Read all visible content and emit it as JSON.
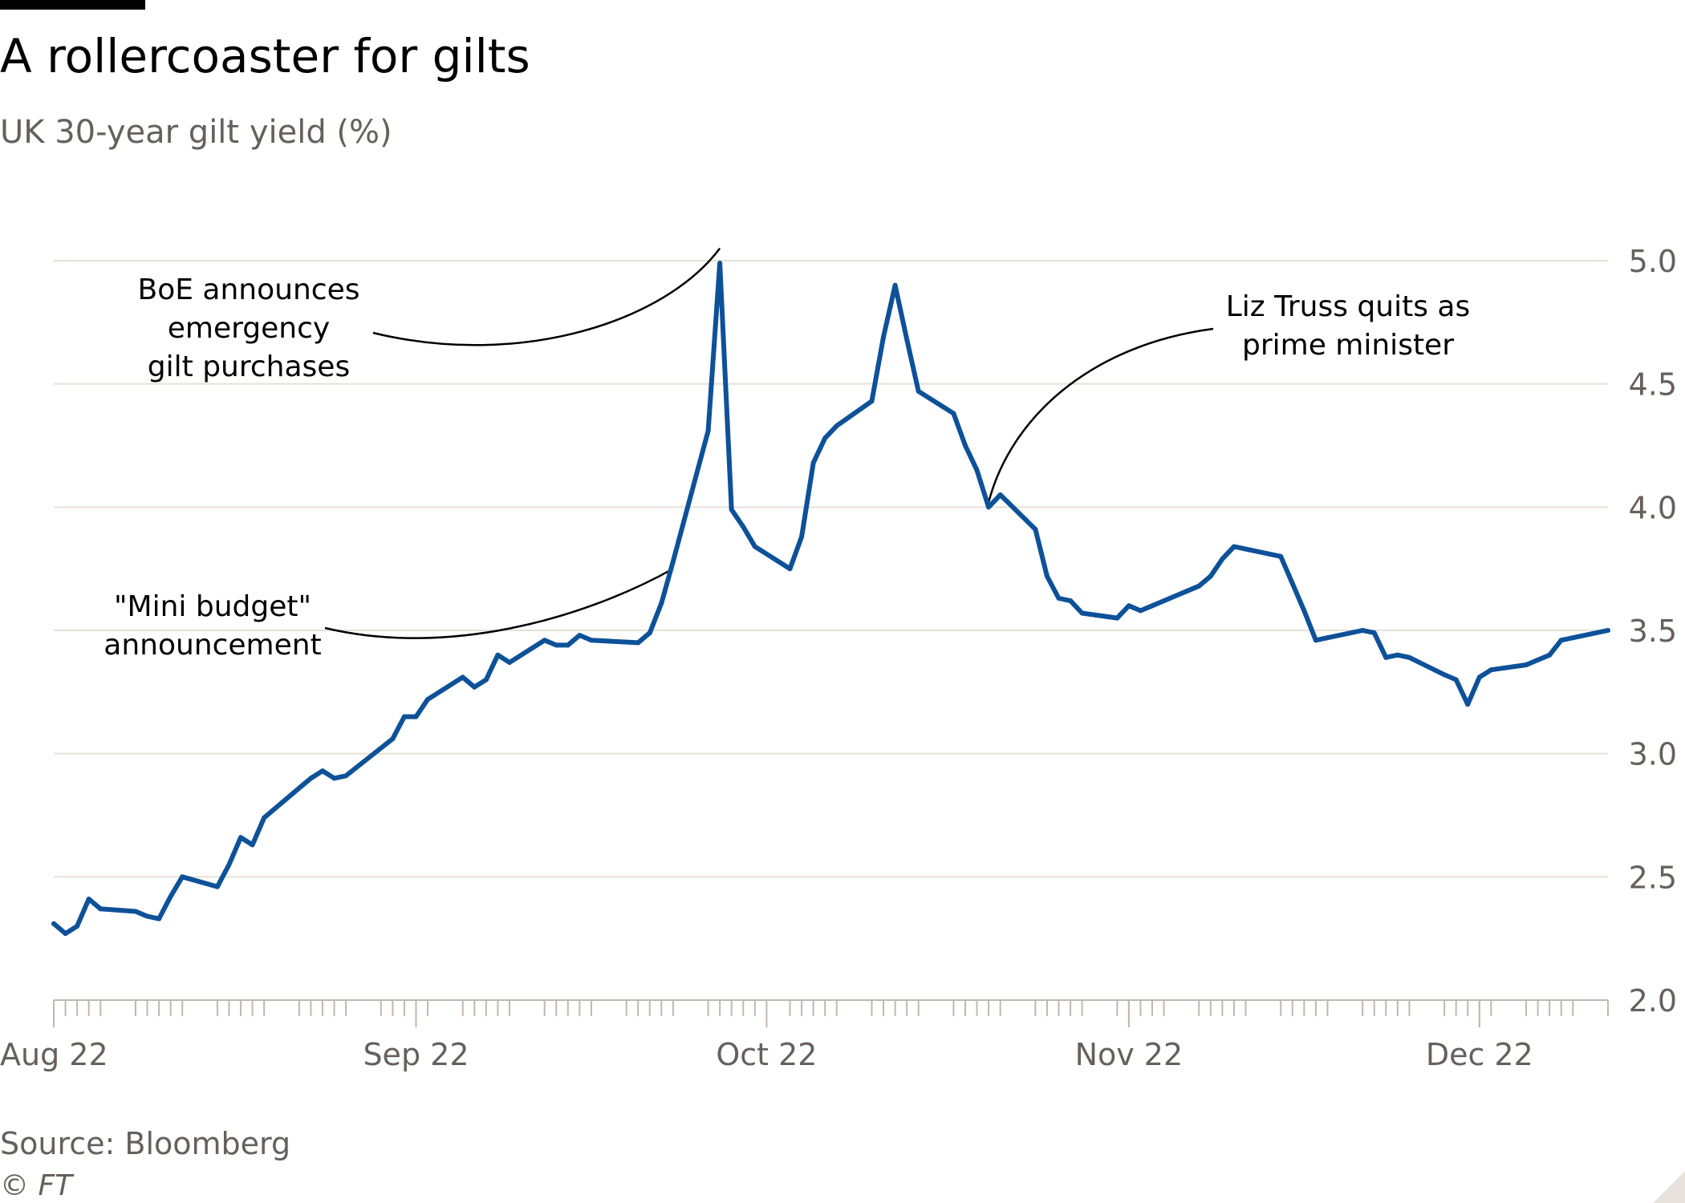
{
  "header": {
    "title": "A rollercoaster for gilts",
    "subtitle": "UK 30-year gilt yield (%)"
  },
  "footer": {
    "source": "Source: Bloomberg",
    "copyright": "© FT"
  },
  "colors": {
    "line": "#0d5199",
    "grid": "#e6e0d6",
    "axis": "#bfb8b0",
    "text": "#66605c"
  },
  "chart_data": {
    "type": "line",
    "title": "A rollercoaster for gilts",
    "subtitle": "UK 30-year gilt yield (%)",
    "xlabel": "",
    "ylabel": "",
    "ylim": [
      2.0,
      5.0
    ],
    "y_ticks": [
      "2.0",
      "2.5",
      "3.0",
      "3.5",
      "4.0",
      "4.5",
      "5.0"
    ],
    "y_axis_side": "right",
    "x_ticks": [
      {
        "label": "Aug 22",
        "date": "2022-08-01"
      },
      {
        "label": "Sep 22",
        "date": "2022-09-01"
      },
      {
        "label": "Oct 22",
        "date": "2022-10-01"
      },
      {
        "label": "Nov 22",
        "date": "2022-11-01"
      },
      {
        "label": "Dec 22",
        "date": "2022-12-01"
      }
    ],
    "x_range": [
      "2022-08-01",
      "2022-12-12"
    ],
    "grid": "horizontal",
    "series": [
      {
        "points": [
          [
            "2022-08-01",
            2.31
          ],
          [
            "2022-08-02",
            2.27
          ],
          [
            "2022-08-03",
            2.3
          ],
          [
            "2022-08-04",
            2.41
          ],
          [
            "2022-08-05",
            2.37
          ],
          [
            "2022-08-08",
            2.36
          ],
          [
            "2022-08-09",
            2.34
          ],
          [
            "2022-08-10",
            2.33
          ],
          [
            "2022-08-11",
            2.42
          ],
          [
            "2022-08-12",
            2.5
          ],
          [
            "2022-08-15",
            2.46
          ],
          [
            "2022-08-16",
            2.55
          ],
          [
            "2022-08-17",
            2.66
          ],
          [
            "2022-08-18",
            2.63
          ],
          [
            "2022-08-19",
            2.74
          ],
          [
            "2022-08-22",
            2.86
          ],
          [
            "2022-08-23",
            2.9
          ],
          [
            "2022-08-24",
            2.93
          ],
          [
            "2022-08-25",
            2.9
          ],
          [
            "2022-08-26",
            2.91
          ],
          [
            "2022-08-30",
            3.06
          ],
          [
            "2022-08-31",
            3.15
          ],
          [
            "2022-09-01",
            3.15
          ],
          [
            "2022-09-02",
            3.22
          ],
          [
            "2022-09-05",
            3.31
          ],
          [
            "2022-09-06",
            3.27
          ],
          [
            "2022-09-07",
            3.3
          ],
          [
            "2022-09-08",
            3.4
          ],
          [
            "2022-09-09",
            3.37
          ],
          [
            "2022-09-12",
            3.46
          ],
          [
            "2022-09-13",
            3.44
          ],
          [
            "2022-09-14",
            3.44
          ],
          [
            "2022-09-15",
            3.48
          ],
          [
            "2022-09-16",
            3.46
          ],
          [
            "2022-09-20",
            3.45
          ],
          [
            "2022-09-21",
            3.49
          ],
          [
            "2022-09-22",
            3.61
          ],
          [
            "2022-09-23",
            3.78
          ],
          [
            "2022-09-26",
            4.31
          ],
          [
            "2022-09-27",
            4.99
          ],
          [
            "2022-09-28",
            3.99
          ],
          [
            "2022-09-29",
            3.92
          ],
          [
            "2022-09-30",
            3.84
          ],
          [
            "2022-10-03",
            3.75
          ],
          [
            "2022-10-04",
            3.88
          ],
          [
            "2022-10-05",
            4.18
          ],
          [
            "2022-10-06",
            4.28
          ],
          [
            "2022-10-07",
            4.33
          ],
          [
            "2022-10-10",
            4.43
          ],
          [
            "2022-10-11",
            4.69
          ],
          [
            "2022-10-12",
            4.9
          ],
          [
            "2022-10-13",
            4.68
          ],
          [
            "2022-10-14",
            4.47
          ],
          [
            "2022-10-17",
            4.38
          ],
          [
            "2022-10-18",
            4.25
          ],
          [
            "2022-10-19",
            4.15
          ],
          [
            "2022-10-20",
            4.0
          ],
          [
            "2022-10-21",
            4.05
          ],
          [
            "2022-10-24",
            3.91
          ],
          [
            "2022-10-25",
            3.72
          ],
          [
            "2022-10-26",
            3.63
          ],
          [
            "2022-10-27",
            3.62
          ],
          [
            "2022-10-28",
            3.57
          ],
          [
            "2022-10-31",
            3.55
          ],
          [
            "2022-11-01",
            3.6
          ],
          [
            "2022-11-02",
            3.58
          ],
          [
            "2022-11-03",
            3.6
          ],
          [
            "2022-11-04",
            3.62
          ],
          [
            "2022-11-07",
            3.68
          ],
          [
            "2022-11-08",
            3.72
          ],
          [
            "2022-11-09",
            3.79
          ],
          [
            "2022-11-10",
            3.84
          ],
          [
            "2022-11-11",
            3.83
          ],
          [
            "2022-11-14",
            3.8
          ],
          [
            "2022-11-15",
            3.69
          ],
          [
            "2022-11-16",
            3.58
          ],
          [
            "2022-11-17",
            3.46
          ],
          [
            "2022-11-18",
            3.47
          ],
          [
            "2022-11-21",
            3.5
          ],
          [
            "2022-11-22",
            3.49
          ],
          [
            "2022-11-23",
            3.39
          ],
          [
            "2022-11-24",
            3.4
          ],
          [
            "2022-11-25",
            3.39
          ],
          [
            "2022-11-28",
            3.32
          ],
          [
            "2022-11-29",
            3.3
          ],
          [
            "2022-11-30",
            3.2
          ],
          [
            "2022-12-01",
            3.31
          ],
          [
            "2022-12-02",
            3.34
          ],
          [
            "2022-12-05",
            3.36
          ],
          [
            "2022-12-06",
            3.38
          ],
          [
            "2022-12-07",
            3.4
          ],
          [
            "2022-12-08",
            3.46
          ],
          [
            "2022-12-09",
            3.47
          ],
          [
            "2022-12-12",
            3.5
          ]
        ]
      }
    ],
    "annotations": [
      {
        "lines": [
          "BoE announces",
          "emergency",
          "gilt purchases"
        ],
        "target": [
          "2022-09-27",
          5.05
        ]
      },
      {
        "lines": [
          "Liz Truss quits as",
          "prime minister"
        ],
        "target": [
          "2022-10-20",
          4.02
        ]
      },
      {
        "lines": [
          "\"Mini budget\"",
          "announcement"
        ],
        "target": [
          "2022-09-23",
          3.75
        ]
      }
    ]
  }
}
